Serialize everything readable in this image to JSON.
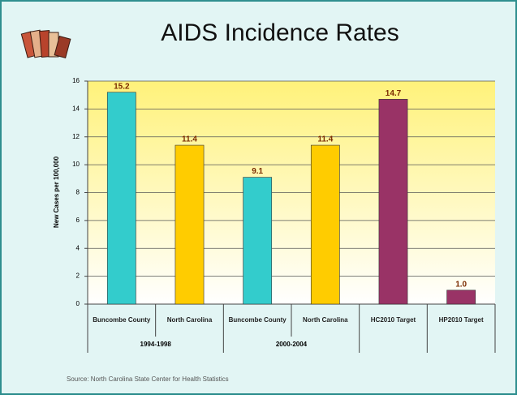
{
  "chart_data": {
    "type": "bar",
    "title": "AIDS Incidence Rates",
    "y_label": "New Cases per 100,000",
    "categories": [
      "Buncombe County",
      "North Carolina",
      "Buncombe County",
      "North Carolina",
      "HC2010 Target",
      "HP2010 Target"
    ],
    "group_labels": [
      "1994-1998",
      "1994-1998",
      "2000-2004",
      "2000-2004",
      null,
      null
    ],
    "values": [
      15.2,
      11.4,
      9.1,
      11.4,
      14.7,
      1.0
    ],
    "value_labels": [
      "15.2",
      "11.4",
      "9.1",
      "11.4",
      "14.7",
      "1.0"
    ],
    "colors": [
      "#33cccc",
      "#ffcc00",
      "#33cccc",
      "#ffcc00",
      "#993366",
      "#993366"
    ],
    "ylim": [
      0,
      16
    ],
    "yticks": [
      0,
      2,
      4,
      6,
      8,
      10,
      12,
      14,
      16
    ],
    "grid": true,
    "source": "Source: North Carolina State Center for Health Statistics"
  }
}
